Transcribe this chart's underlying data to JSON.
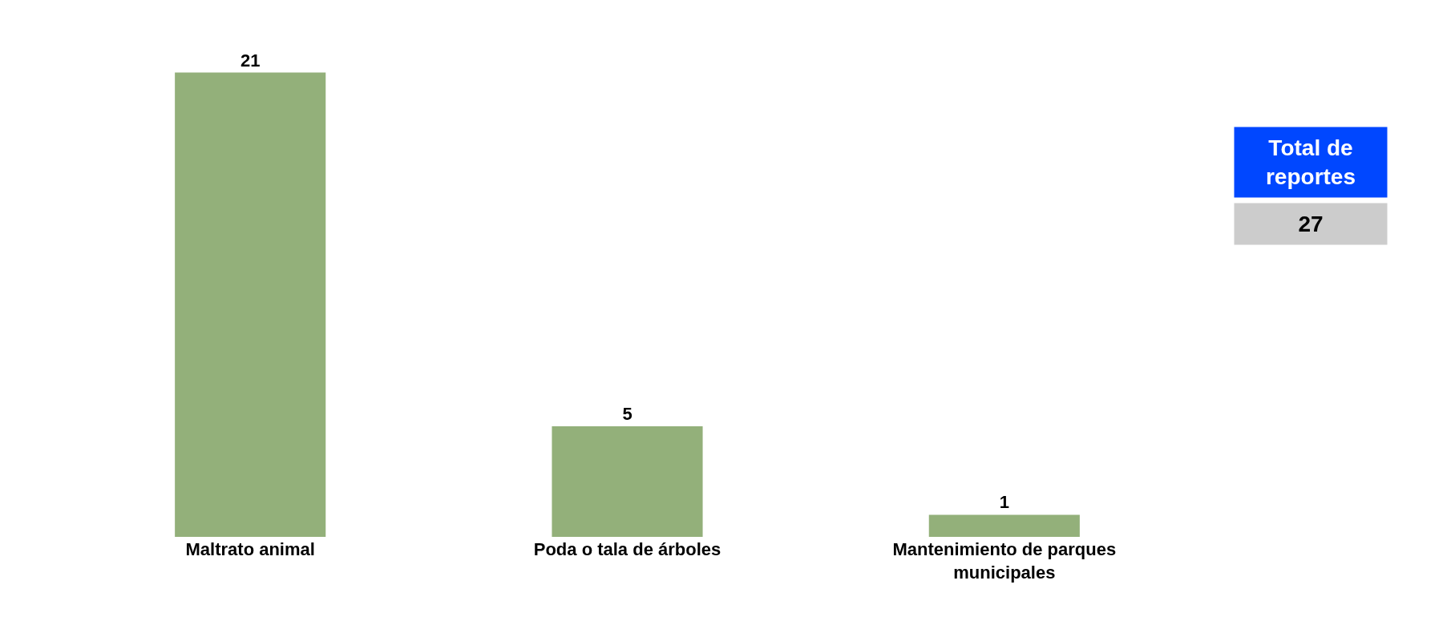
{
  "chart_data": {
    "type": "bar",
    "categories": [
      "Maltrato animal",
      "Poda o tala de árboles",
      "Mantenimiento de parques municipales"
    ],
    "values": [
      21,
      5,
      1
    ],
    "color": "#93b07a",
    "data_labels": true,
    "legend": false,
    "annotations": [
      "Total de reportes",
      "27"
    ]
  }
}
